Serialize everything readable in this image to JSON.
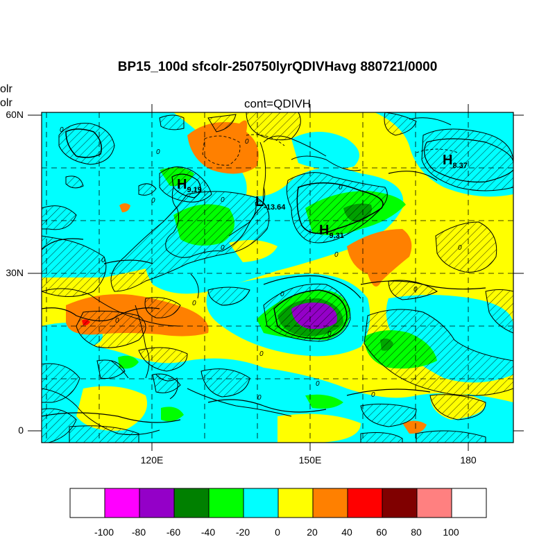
{
  "title": "BP15_100d sfcolr-250750lyrQDIVHavg  880721/0000",
  "subtitle": "cont=QDIVH",
  "left_cut_labels": [
    "olr",
    "olr"
  ],
  "lat_labels": [
    "60N",
    "30N",
    "0"
  ],
  "lon_labels": [
    "120E",
    "150E",
    "180"
  ],
  "symbols": [
    {
      "letter": "H",
      "value": "9.19"
    },
    {
      "letter": "L",
      "value": "-13.64"
    },
    {
      "letter": "H",
      "value": "9.31"
    },
    {
      "letter": "H",
      "value": "8.37"
    }
  ],
  "contour_labels": [
    "0",
    "0",
    "0",
    "0",
    "0",
    "0",
    "0",
    "0",
    "0",
    "0",
    "0",
    "0",
    "0",
    "0",
    "0",
    "0",
    "0",
    "0",
    "0"
  ],
  "colorbar": {
    "ticks": [
      "-100",
      "-80",
      "-60",
      "-40",
      "-20",
      "0",
      "20",
      "40",
      "60",
      "80",
      "100"
    ],
    "colors": [
      "#ffffff",
      "#ff00ff",
      "#9400c8",
      "#008000",
      "#00ff00",
      "#00ffff",
      "#ffff00",
      "#ff8000",
      "#ff0000",
      "#800000",
      "#ff8080",
      "#ffffff"
    ]
  }
}
